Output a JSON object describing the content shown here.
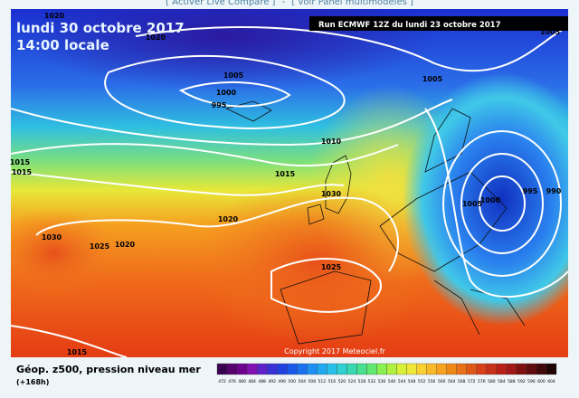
{
  "header": {
    "links": [
      "[ Activer Live Compare ]",
      "-",
      "[ voir Panel multimodèles ]"
    ]
  },
  "map": {
    "date": "lundi 30 octobre 2017",
    "time": "14:00 locale",
    "run": "Run ECMWF 12Z du lundi 23 octobre 2017",
    "copyright": "Copyright 2017 Meteociel.fr",
    "isobar_labels": [
      "1020",
      "1020",
      "1005",
      "1005",
      "1000",
      "995",
      "1005",
      "1010",
      "1015",
      "1015",
      "1015",
      "1030",
      "1020",
      "1005",
      "1000",
      "995",
      "990",
      "1030",
      "1025",
      "1020",
      "1025",
      "1015"
    ]
  },
  "footer": {
    "title": "Géop. z500, pression niveau mer",
    "lead": "(+168h)",
    "scale_labels": [
      "472",
      "476",
      "480",
      "484",
      "488",
      "492",
      "496",
      "500",
      "504",
      "508",
      "512",
      "516",
      "520",
      "524",
      "528",
      "532",
      "536",
      "540",
      "544",
      "548",
      "552",
      "556",
      "560",
      "564",
      "568",
      "572",
      "576",
      "580",
      "584",
      "588",
      "592",
      "596",
      "600",
      "604"
    ]
  }
}
